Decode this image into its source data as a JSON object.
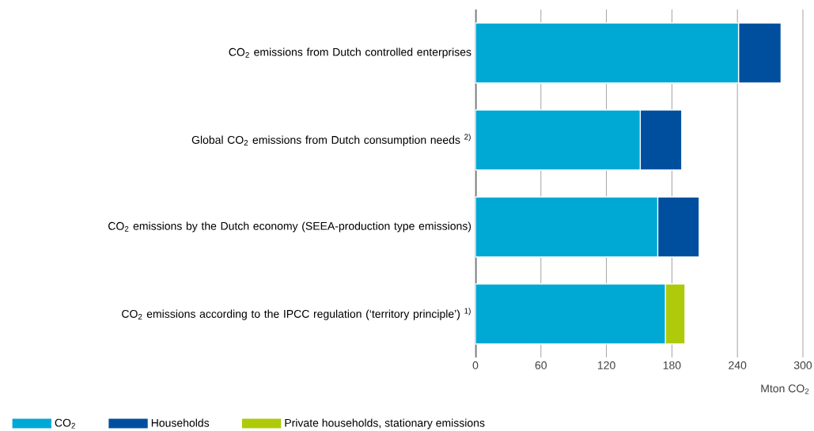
{
  "chart_data": {
    "type": "bar",
    "orientation": "horizontal",
    "stacked": true,
    "categories": [
      "CO$_{2}$ emissions from Dutch controlled enterprises",
      "Global CO$_{2}$ emissions from Dutch consumption needs $^{2)}$",
      "CO$_{2}$ emissions by the Dutch economy (SEEA-production type emissions)",
      "CO$_{2}$ emissions according to the IPCC regulation (‘territory principle’) $^{1)}$"
    ],
    "series": [
      {
        "name": "CO$_{2}$",
        "color": "#00a8d4",
        "values": [
          241,
          151,
          167,
          174
        ]
      },
      {
        "name": "Households",
        "color": "#004f9e",
        "values": [
          39,
          38,
          38,
          null
        ]
      },
      {
        "name": "Private households, stationary emissions",
        "color": "#afca0b",
        "values": [
          null,
          null,
          null,
          18
        ]
      }
    ],
    "xlim": [
      0,
      300
    ],
    "xticks": [
      0,
      60,
      120,
      180,
      240,
      300
    ],
    "xlabel": "Mton CO$_{2}$",
    "grid": "x",
    "legend": "bottom left"
  }
}
